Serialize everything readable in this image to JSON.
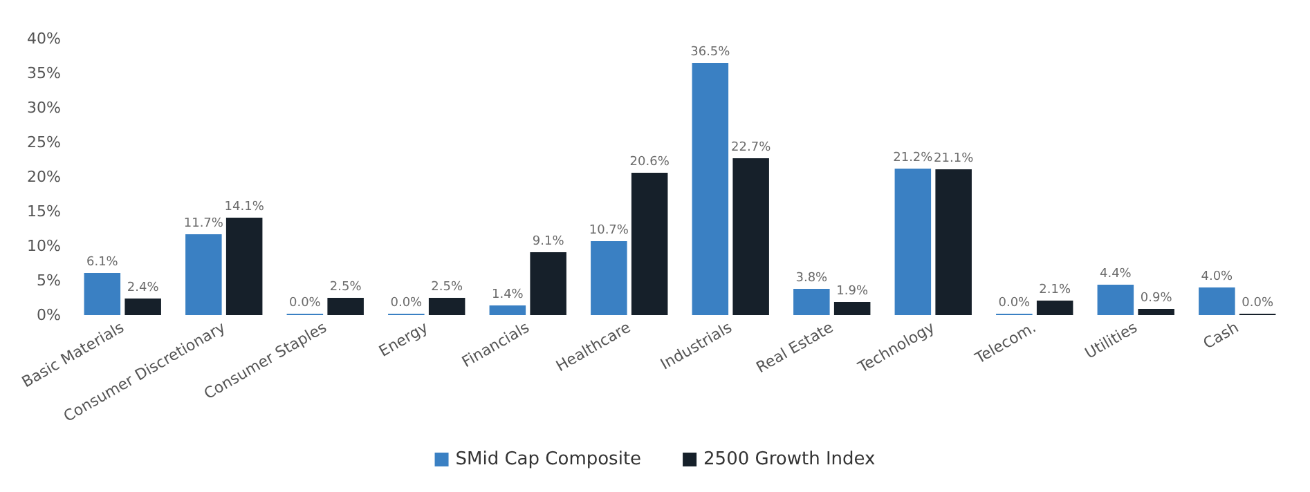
{
  "chart_data": {
    "type": "bar",
    "categories": [
      "Basic Materials",
      "Consumer Discretionary",
      "Consumer Staples",
      "Energy",
      "Financials",
      "Healthcare",
      "Industrials",
      "Real Estate",
      "Technology",
      "Telecom.",
      "Utilities",
      "Cash"
    ],
    "series": [
      {
        "name": "SMid Cap Composite",
        "color": "#3a80c3",
        "values": [
          6.1,
          11.7,
          0.0,
          0.0,
          1.4,
          10.7,
          36.5,
          3.8,
          21.2,
          0.0,
          4.4,
          4.0
        ],
        "value_labels": [
          "6.1%",
          "11.7%",
          "0.0%",
          "0.0%",
          "1.4%",
          "10.7%",
          "36.5%",
          "3.8%",
          "21.2%",
          "0.0%",
          "4.4%",
          "4.0%"
        ]
      },
      {
        "name": "2500 Growth Index",
        "color": "#16202a",
        "values": [
          2.4,
          14.1,
          2.5,
          2.5,
          9.1,
          20.6,
          22.7,
          1.9,
          21.1,
          2.1,
          0.9,
          0.0
        ],
        "value_labels": [
          "2.4%",
          "14.1%",
          "2.5%",
          "2.5%",
          "9.1%",
          "20.6%",
          "22.7%",
          "1.9%",
          "21.1%",
          "2.1%",
          "0.9%",
          "0.0%"
        ]
      }
    ],
    "ylim": [
      0,
      40
    ],
    "yticks": [
      {
        "value": 0,
        "label": "0%"
      },
      {
        "value": 5,
        "label": "5%"
      },
      {
        "value": 10,
        "label": "10%"
      },
      {
        "value": 15,
        "label": "15%"
      },
      {
        "value": 20,
        "label": "20%"
      },
      {
        "value": 25,
        "label": "25%"
      },
      {
        "value": 30,
        "label": "30%"
      },
      {
        "value": 35,
        "label": "35%"
      },
      {
        "value": 40,
        "label": "40%"
      }
    ],
    "grid": false,
    "legend": "bottom"
  }
}
